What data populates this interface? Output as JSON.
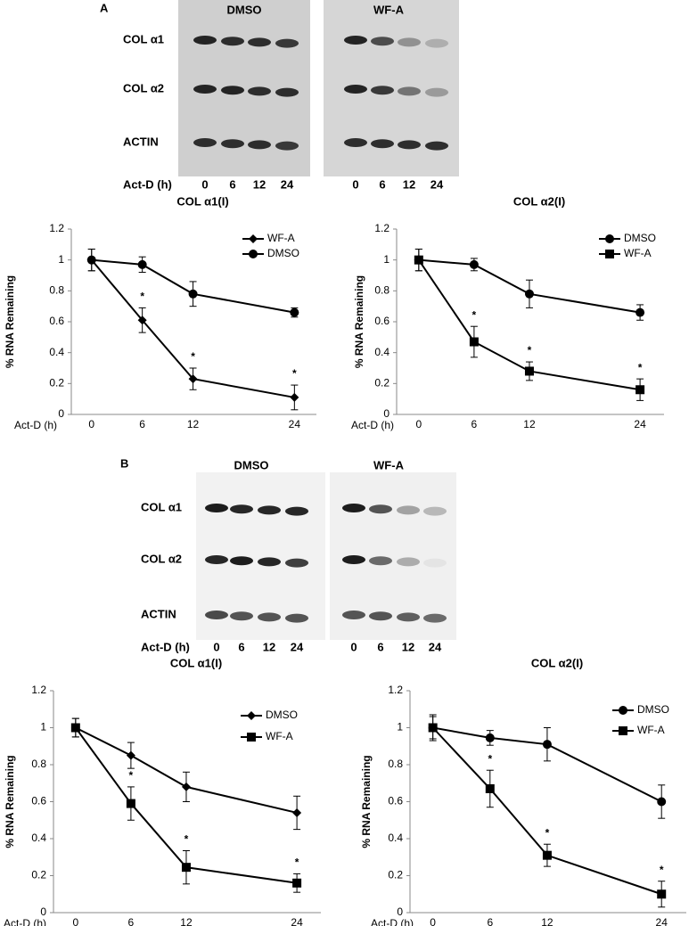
{
  "blots": [
    {
      "label": "A",
      "conditions": [
        "DMSO",
        "WF-A"
      ],
      "rows": [
        "COL α1",
        "COL α2",
        "ACTIN"
      ],
      "time_label": "Act-D (h)",
      "times": [
        "0",
        "6",
        "12",
        "24"
      ]
    },
    {
      "label": "B",
      "conditions": [
        "DMSO",
        "WF-A"
      ],
      "rows": [
        "COL α1",
        "COL α2",
        "ACTIN"
      ],
      "time_label": "Act-D (h)",
      "times": [
        "0",
        "6",
        "12",
        "24"
      ]
    }
  ],
  "chart_data": [
    {
      "type": "line",
      "title": "COL α1(I)",
      "x_label": "Act-D (h)",
      "y_label": "% RNA Remaining",
      "x": [
        0,
        6,
        12,
        24
      ],
      "xlim": [
        -2.4,
        26.6
      ],
      "xticks": [
        0,
        6,
        12,
        24
      ],
      "ylim": [
        0,
        1.2
      ],
      "yticks": [
        0,
        0.2,
        0.4,
        0.6,
        0.8,
        1,
        1.2
      ],
      "legend": "top-right",
      "series": [
        {
          "name": "WF-A",
          "color": "#000000",
          "marker": "diamond",
          "values": [
            1,
            0.61,
            0.23,
            0.11
          ],
          "errors": [
            0.07,
            0.08,
            0.07,
            0.08
          ]
        },
        {
          "name": "DMSO",
          "color": "#000000",
          "marker": "circle",
          "values": [
            1,
            0.97,
            0.78,
            0.66
          ],
          "errors": [
            0.07,
            0.05,
            0.08,
            0.03
          ]
        }
      ],
      "annotations": [
        {
          "x": 6,
          "text": "*"
        },
        {
          "x": 12,
          "text": "*"
        },
        {
          "x": 24,
          "text": "*"
        }
      ]
    },
    {
      "type": "line",
      "title": "COL α2(I)",
      "x_label": "Act-D (h)",
      "y_label": "% RNA Remaining",
      "x": [
        0,
        6,
        12,
        24
      ],
      "xlim": [
        -2.4,
        26.6
      ],
      "xticks": [
        0,
        6,
        12,
        24
      ],
      "ylim": [
        0,
        1.2
      ],
      "yticks": [
        0,
        0.2,
        0.4,
        0.6,
        0.8,
        1,
        1.2
      ],
      "legend": "top-right",
      "series": [
        {
          "name": "DMSO",
          "color": "#000000",
          "marker": "circle",
          "values": [
            1,
            0.97,
            0.78,
            0.66
          ],
          "errors": [
            0.07,
            0.04,
            0.09,
            0.05
          ]
        },
        {
          "name": "WF-A",
          "color": "#000000",
          "marker": "square",
          "values": [
            1,
            0.47,
            0.28,
            0.16
          ],
          "errors": [
            0.07,
            0.1,
            0.06,
            0.07
          ]
        }
      ],
      "annotations": [
        {
          "x": 6,
          "text": "*"
        },
        {
          "x": 12,
          "text": "*"
        },
        {
          "x": 24,
          "text": "*"
        }
      ]
    },
    {
      "type": "line",
      "title": "COL α1(I)",
      "x_label": "Act-D (h)",
      "y_label": "% RNA Remaining",
      "x": [
        0,
        6,
        12,
        24
      ],
      "xlim": [
        -2.4,
        26.6
      ],
      "xticks": [
        0,
        6,
        12,
        24
      ],
      "ylim": [
        0,
        1.2
      ],
      "yticks": [
        0,
        0.2,
        0.4,
        0.6,
        0.8,
        1,
        1.2
      ],
      "legend": "top-right",
      "series": [
        {
          "name": "DMSO",
          "color": "#000000",
          "marker": "diamond",
          "values": [
            1,
            0.85,
            0.68,
            0.54
          ],
          "errors": [
            0.05,
            0.07,
            0.08,
            0.09
          ]
        },
        {
          "name": "WF-A",
          "color": "#000000",
          "marker": "square",
          "values": [
            1,
            0.59,
            0.245,
            0.16
          ],
          "errors": [
            0.05,
            0.09,
            0.09,
            0.05
          ]
        }
      ],
      "annotations": [
        {
          "x": 6,
          "text": "*"
        },
        {
          "x": 12,
          "text": "*"
        },
        {
          "x": 24,
          "text": "*"
        }
      ]
    },
    {
      "type": "line",
      "title": "COL α2(I)",
      "x_label": "Act-D (h)",
      "y_label": "% RNA Remaining",
      "x": [
        0,
        6,
        12,
        24
      ],
      "xlim": [
        -2.4,
        26.6
      ],
      "xticks": [
        0,
        6,
        12,
        24
      ],
      "ylim": [
        0,
        1.2
      ],
      "yticks": [
        0,
        0.2,
        0.4,
        0.6,
        0.8,
        1,
        1.2
      ],
      "legend": "top-right",
      "series": [
        {
          "name": "DMSO",
          "color": "#000000",
          "marker": "circle",
          "values": [
            1,
            0.945,
            0.91,
            0.6
          ],
          "errors": [
            0.06,
            0.04,
            0.09,
            0.09
          ]
        },
        {
          "name": "WF-A",
          "color": "#000000",
          "marker": "square",
          "values": [
            1,
            0.67,
            0.31,
            0.1
          ],
          "errors": [
            0.07,
            0.1,
            0.06,
            0.07
          ]
        }
      ],
      "annotations": [
        {
          "x": 6,
          "text": "*"
        },
        {
          "x": 12,
          "text": "*"
        },
        {
          "x": 24,
          "text": "*"
        }
      ]
    }
  ]
}
